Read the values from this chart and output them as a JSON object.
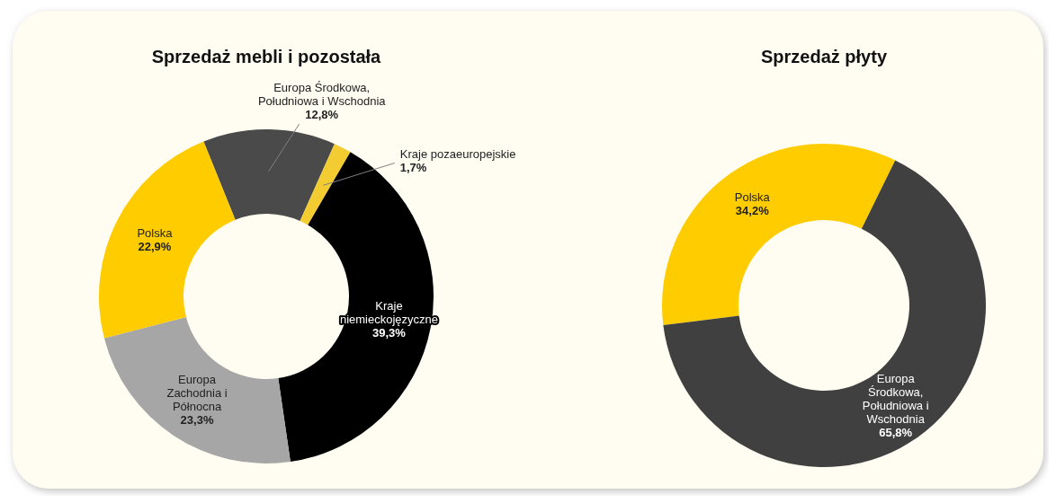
{
  "chart_data": [
    {
      "type": "donut",
      "title": "Sprzedaż mebli i pozostała",
      "categories": [
        "Europa Środkowa, Południowa i Wschodnia",
        "Kraje pozaeuropejskie",
        "Kraje niemieckojęzyczne",
        "Europa Zachodnia i Północna",
        "Polska"
      ],
      "values": [
        12.8,
        1.7,
        39.3,
        23.3,
        22.9
      ],
      "value_labels": [
        "12,8%",
        "1,7%",
        "39,3%",
        "23,3%",
        "22,9%"
      ],
      "colors": [
        "#4a4a4a",
        "#f2cc30",
        "#000000",
        "#a6a6a6",
        "#ffcc00"
      ]
    },
    {
      "type": "donut",
      "title": "Sprzedaż płyty",
      "categories": [
        "Polska",
        "Europa Środkowa, Południowa i Wschodnia"
      ],
      "values": [
        34.2,
        65.8
      ],
      "value_labels": [
        "34,2%",
        "65,8%"
      ],
      "colors": [
        "#ffcc00",
        "#404040"
      ]
    }
  ]
}
